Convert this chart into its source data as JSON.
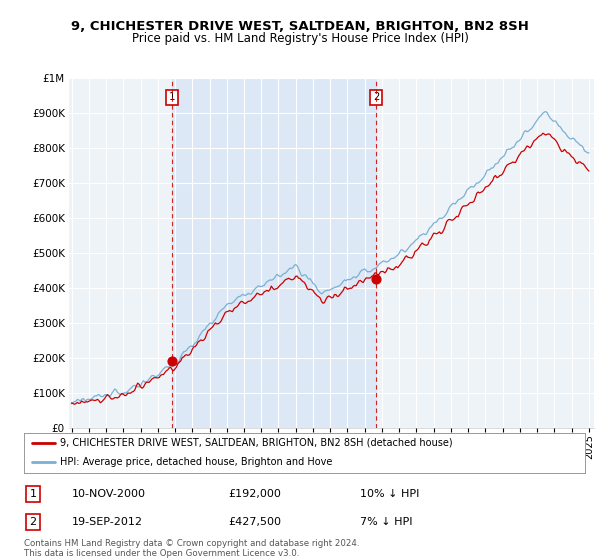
{
  "title": "9, CHICHESTER DRIVE WEST, SALTDEAN, BRIGHTON, BN2 8SH",
  "subtitle": "Price paid vs. HM Land Registry's House Price Index (HPI)",
  "ytick_values": [
    0,
    100000,
    200000,
    300000,
    400000,
    500000,
    600000,
    700000,
    800000,
    900000,
    1000000
  ],
  "hpi_color": "#7ab0d4",
  "price_color": "#cc0000",
  "shade_color": "#dce8f5",
  "sale1_year": 2001.0,
  "sale1_price": 192000,
  "sale2_year": 2013.0,
  "sale2_price": 427500,
  "sale1_date": "10-NOV-2000",
  "sale1_price_str": "£192,000",
  "sale1_rel": "10% ↓ HPI",
  "sale2_date": "19-SEP-2012",
  "sale2_price_str": "£427,500",
  "sale2_rel": "7% ↓ HPI",
  "legend_label1": "9, CHICHESTER DRIVE WEST, SALTDEAN, BRIGHTON, BN2 8SH (detached house)",
  "legend_label2": "HPI: Average price, detached house, Brighton and Hove",
  "footnote": "Contains HM Land Registry data © Crown copyright and database right 2024.\nThis data is licensed under the Open Government Licence v3.0.",
  "bg_color": "#ffffff",
  "plot_bg_color": "#eef3f8",
  "grid_color": "#ffffff",
  "xstart_year": 1995,
  "xend_year": 2025
}
